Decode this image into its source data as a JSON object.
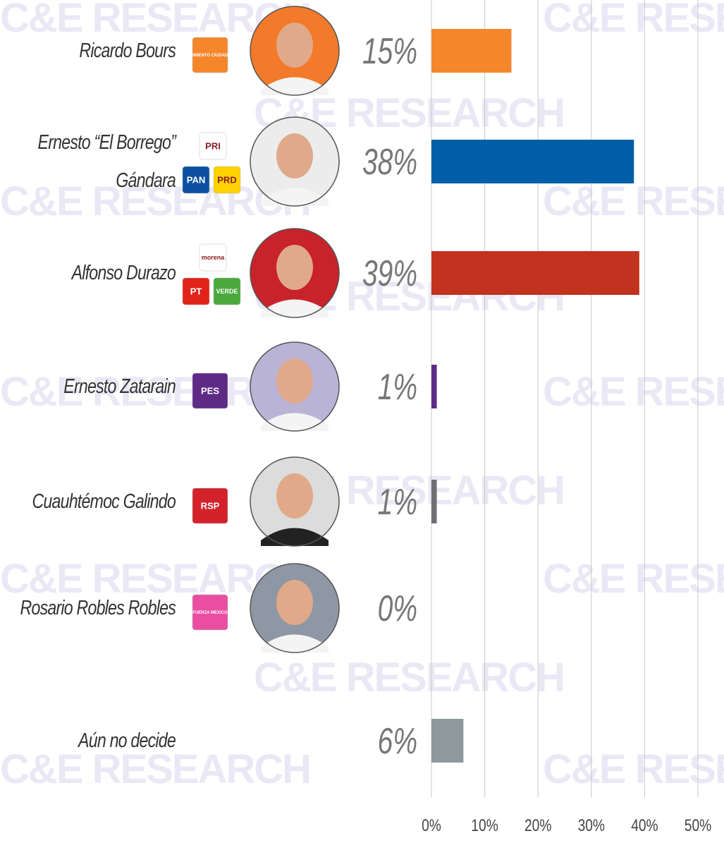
{
  "chart_data": {
    "type": "bar",
    "orientation": "horizontal",
    "watermark": "C&E RESEARCH",
    "categories": [
      "Ricardo Bours",
      "Ernesto “El Borrego” Gándara",
      "Alfonso Durazo",
      "Ernesto Zatarain",
      "Cuauhtémoc Galindo",
      "Rosario Robles Robles",
      "Aún no decide"
    ],
    "values": [
      15,
      38,
      39,
      1,
      1,
      0,
      6
    ],
    "value_labels": [
      "15%",
      "38%",
      "39%",
      "1%",
      "1%",
      "0%",
      "6%"
    ],
    "colors": [
      "#f5862b",
      "#005fa6",
      "#c1321f",
      "#5d2a85",
      "#6f6f73",
      "#e94fa3",
      "#8d999b"
    ],
    "parties": [
      [
        {
          "text": "MOVIMIENTO CIUDADANO",
          "color": "#f5862b"
        }
      ],
      [
        {
          "text": "PRI",
          "color": "#ffffff"
        },
        {
          "text": "PAN",
          "color": "#0b4fa2"
        },
        {
          "text": "PRD",
          "color": "#ffd200"
        }
      ],
      [
        {
          "text": "morena",
          "color": "#ffffff"
        },
        {
          "text": "PT",
          "color": "#e2231a"
        },
        {
          "text": "VERDE",
          "color": "#4aa93c"
        }
      ],
      [
        {
          "text": "PES",
          "color": "#5d2a85"
        }
      ],
      [
        {
          "text": "RSP",
          "color": "#d3222a"
        }
      ],
      [
        {
          "text": "FUERZA MEXICO",
          "color": "#ea4ea1"
        }
      ],
      []
    ],
    "xlim": [
      0,
      50
    ],
    "xticks": [
      {
        "value": 0,
        "label": "0%"
      },
      {
        "value": 10,
        "label": "10%"
      },
      {
        "value": 20,
        "label": "20%"
      },
      {
        "value": 30,
        "label": "30%"
      },
      {
        "value": 40,
        "label": "40%"
      },
      {
        "value": 50,
        "label": "50%"
      }
    ],
    "grid": true
  }
}
